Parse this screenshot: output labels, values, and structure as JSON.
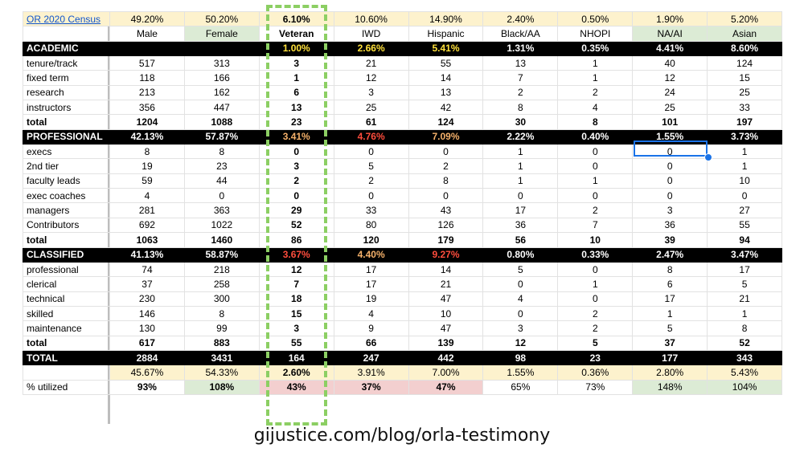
{
  "caption": "gijustice.com/blog/orla-testimony",
  "census_link": "OR 2020 Census",
  "census_values": [
    "49.20%",
    "50.20%",
    "6.10%",
    "10.60%",
    "14.90%",
    "2.40%",
    "0.50%",
    "1.90%",
    "5.20%"
  ],
  "headers": [
    "Male",
    "Female",
    "Veteran",
    "IWD",
    "Hispanic",
    "Black/AA",
    "NHOPI",
    "NA/AI",
    "Asian"
  ],
  "sections": [
    {
      "title": "ACADEMIC",
      "pcts": [
        "",
        "",
        "1.00%",
        "2.66%",
        "5.41%",
        "1.31%",
        "0.35%",
        "4.41%",
        "8.60%"
      ],
      "rows": [
        {
          "label": "tenure/track",
          "values": [
            "517",
            "313",
            "3",
            "21",
            "55",
            "13",
            "1",
            "40",
            "124"
          ]
        },
        {
          "label": "fixed term",
          "values": [
            "118",
            "166",
            "1",
            "12",
            "14",
            "7",
            "1",
            "12",
            "15"
          ]
        },
        {
          "label": "research",
          "values": [
            "213",
            "162",
            "6",
            "3",
            "13",
            "2",
            "2",
            "24",
            "25"
          ]
        },
        {
          "label": "instructors",
          "values": [
            "356",
            "447",
            "13",
            "25",
            "42",
            "8",
            "4",
            "25",
            "33"
          ]
        }
      ],
      "total": {
        "label": "total",
        "values": [
          "1204",
          "1088",
          "23",
          "61",
          "124",
          "30",
          "8",
          "101",
          "197"
        ]
      }
    },
    {
      "title": "PROFESSIONAL",
      "pcts": [
        "42.13%",
        "57.87%",
        "3.41%",
        "4.76%",
        "7.09%",
        "2.22%",
        "0.40%",
        "1.55%",
        "3.73%"
      ],
      "rows": [
        {
          "label": "execs",
          "values": [
            "8",
            "8",
            "0",
            "0",
            "0",
            "1",
            "0",
            "0",
            "1"
          ]
        },
        {
          "label": "2nd tier",
          "values": [
            "19",
            "23",
            "3",
            "5",
            "2",
            "1",
            "0",
            "0",
            "1"
          ]
        },
        {
          "label": "faculty leads",
          "values": [
            "59",
            "44",
            "2",
            "2",
            "8",
            "1",
            "1",
            "0",
            "10"
          ]
        },
        {
          "label": "exec coaches",
          "values": [
            "4",
            "0",
            "0",
            "0",
            "0",
            "0",
            "0",
            "0",
            "0"
          ]
        },
        {
          "label": "managers",
          "values": [
            "281",
            "363",
            "29",
            "33",
            "43",
            "17",
            "2",
            "3",
            "27"
          ]
        },
        {
          "label": "Contributors",
          "values": [
            "692",
            "1022",
            "52",
            "80",
            "126",
            "36",
            "7",
            "36",
            "55"
          ]
        }
      ],
      "total": {
        "label": "total",
        "values": [
          "1063",
          "1460",
          "86",
          "120",
          "179",
          "56",
          "10",
          "39",
          "94"
        ]
      }
    },
    {
      "title": "CLASSIFIED",
      "pcts": [
        "41.13%",
        "58.87%",
        "3.67%",
        "4.40%",
        "9.27%",
        "0.80%",
        "0.33%",
        "2.47%",
        "3.47%"
      ],
      "rows": [
        {
          "label": "professional",
          "values": [
            "74",
            "218",
            "12",
            "17",
            "14",
            "5",
            "0",
            "8",
            "17"
          ]
        },
        {
          "label": "clerical",
          "values": [
            "37",
            "258",
            "7",
            "17",
            "21",
            "0",
            "1",
            "6",
            "5"
          ]
        },
        {
          "label": "technical",
          "values": [
            "230",
            "300",
            "18",
            "19",
            "47",
            "4",
            "0",
            "17",
            "21"
          ]
        },
        {
          "label": "skilled",
          "values": [
            "146",
            "8",
            "15",
            "4",
            "10",
            "0",
            "2",
            "1",
            "1"
          ]
        },
        {
          "label": "maintenance",
          "values": [
            "130",
            "99",
            "3",
            "9",
            "47",
            "3",
            "2",
            "5",
            "8"
          ]
        }
      ],
      "total": {
        "label": "total",
        "values": [
          "617",
          "883",
          "55",
          "66",
          "139",
          "12",
          "5",
          "37",
          "52"
        ]
      }
    }
  ],
  "grand_total": {
    "label": "TOTAL",
    "values": [
      "2884",
      "3431",
      "164",
      "247",
      "442",
      "98",
      "23",
      "177",
      "343"
    ]
  },
  "overall_pcts": [
    "45.67%",
    "54.33%",
    "2.60%",
    "3.91%",
    "7.00%",
    "1.55%",
    "0.36%",
    "2.80%",
    "5.43%"
  ],
  "utilized": {
    "label": "% utilized",
    "values": [
      "93%",
      "108%",
      "43%",
      "37%",
      "47%",
      "65%",
      "73%",
      "148%",
      "104%"
    ]
  },
  "colors": {
    "section_bg": "#000000",
    "census_row_bg": "#fdf2cd",
    "highlight_green": "#dcebd5",
    "highlight_pink": "#f3cfcf",
    "pct_yellow": "#ffe13b",
    "pct_orange": "#f6b26b",
    "pct_red": "#ff4d3d",
    "veteran_box": "#8ccf63",
    "selection": "#1a73e8"
  }
}
